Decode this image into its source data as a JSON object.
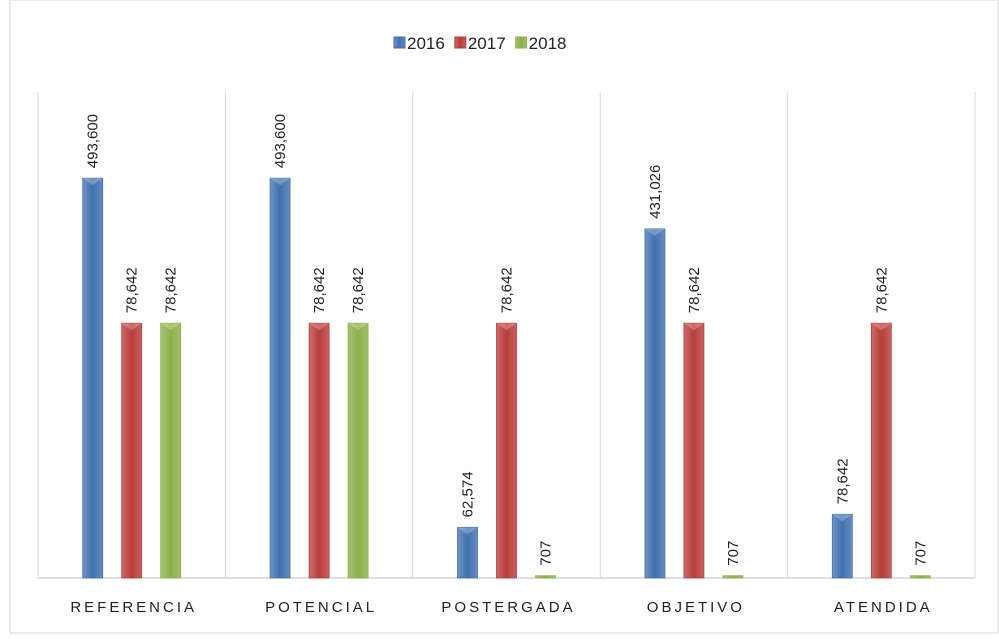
{
  "chart_data": {
    "type": "bar",
    "categories": [
      "REFERENCIA",
      "POTENCIAL",
      "POSTERGADA",
      "OBJETIVO",
      "ATENDIDA"
    ],
    "series": [
      {
        "name": "2016",
        "color": "#4170b0",
        "values": [
          493600,
          493600,
          62574,
          431026,
          78642
        ],
        "value_labels": [
          "493,600",
          "493,600",
          "62,574",
          "431,026",
          "78,642"
        ]
      },
      {
        "name": "2017",
        "color": "#b83c3a",
        "axis": "y2",
        "values": [
          78642,
          78642,
          78642,
          78642,
          78642
        ],
        "value_labels": [
          "78,642",
          "78,642",
          "78,642",
          "78,642",
          "78,642"
        ]
      },
      {
        "name": "2018",
        "color": "#8caf48",
        "axis": "y2",
        "values": [
          78642,
          78642,
          707,
          707,
          707
        ],
        "value_labels": [
          "78,642",
          "78,642",
          "707",
          "707",
          "707"
        ]
      }
    ],
    "ylim": [
      0,
      600000
    ],
    "y2lim": [
      0,
      150000
    ],
    "legend": "top",
    "grid": false
  }
}
